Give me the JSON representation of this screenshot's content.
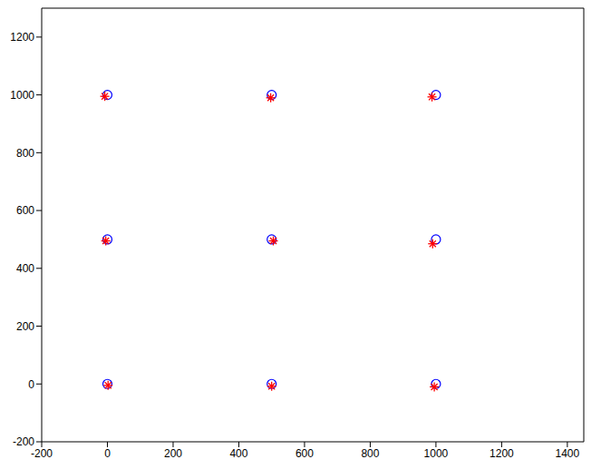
{
  "chart_data": {
    "type": "scatter",
    "xlim": [
      -200,
      1450
    ],
    "ylim": [
      -200,
      1300
    ],
    "xticks": [
      -200,
      0,
      200,
      400,
      600,
      800,
      1000,
      1200,
      1400
    ],
    "yticks": [
      -200,
      0,
      200,
      400,
      600,
      800,
      1000,
      1200
    ],
    "grid": false,
    "series": [
      {
        "color": "#0000ff",
        "marker": "circle",
        "x": [
          0,
          500,
          1000,
          0,
          500,
          1000,
          0,
          500,
          1000
        ],
        "y": [
          0,
          0,
          0,
          500,
          500,
          500,
          1000,
          1000,
          1000
        ]
      },
      {
        "color": "#ff0000",
        "marker": "star",
        "x": [
          2,
          500,
          995,
          -5,
          505,
          990,
          -8,
          497,
          988
        ],
        "y": [
          -5,
          -8,
          -10,
          495,
          495,
          485,
          995,
          990,
          993
        ]
      }
    ]
  }
}
